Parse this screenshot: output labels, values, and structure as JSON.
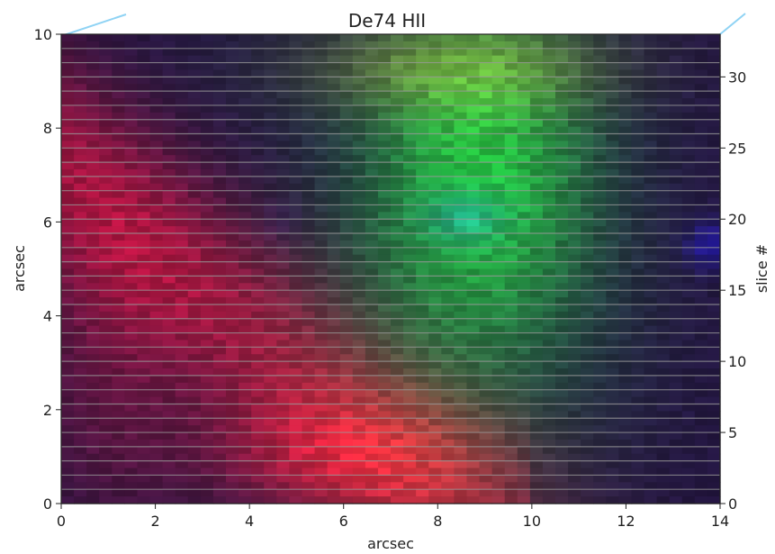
{
  "chart_data": {
    "type": "heatmap",
    "title": "De74 HII",
    "xlabel": "arcsec",
    "ylabel": "arcsec",
    "y2label": "slice #",
    "xlim": [
      0,
      14
    ],
    "ylim": [
      0,
      10
    ],
    "y2lim": [
      0,
      33
    ],
    "x_ticks": [
      0,
      2,
      4,
      6,
      8,
      10,
      12,
      14
    ],
    "y_ticks": [
      0,
      2,
      4,
      6,
      8,
      10
    ],
    "y2_ticks": [
      0,
      5,
      10,
      15,
      20,
      25,
      30
    ],
    "grid": false,
    "slice_count": 33,
    "image_description_channels": {
      "red": "broad band along lower-left to lower-center (peak near x≈6, y≈1)",
      "green": "central band (peak near x≈9, y≈7.5)",
      "blue": "compact knots near x≈8.6, y≈6.1 and x≈13.8, y≈5.5"
    },
    "colors": {
      "slice_line": "#9a9a9a",
      "axes": "#222222",
      "accent_line": "#8fd3f4"
    }
  }
}
